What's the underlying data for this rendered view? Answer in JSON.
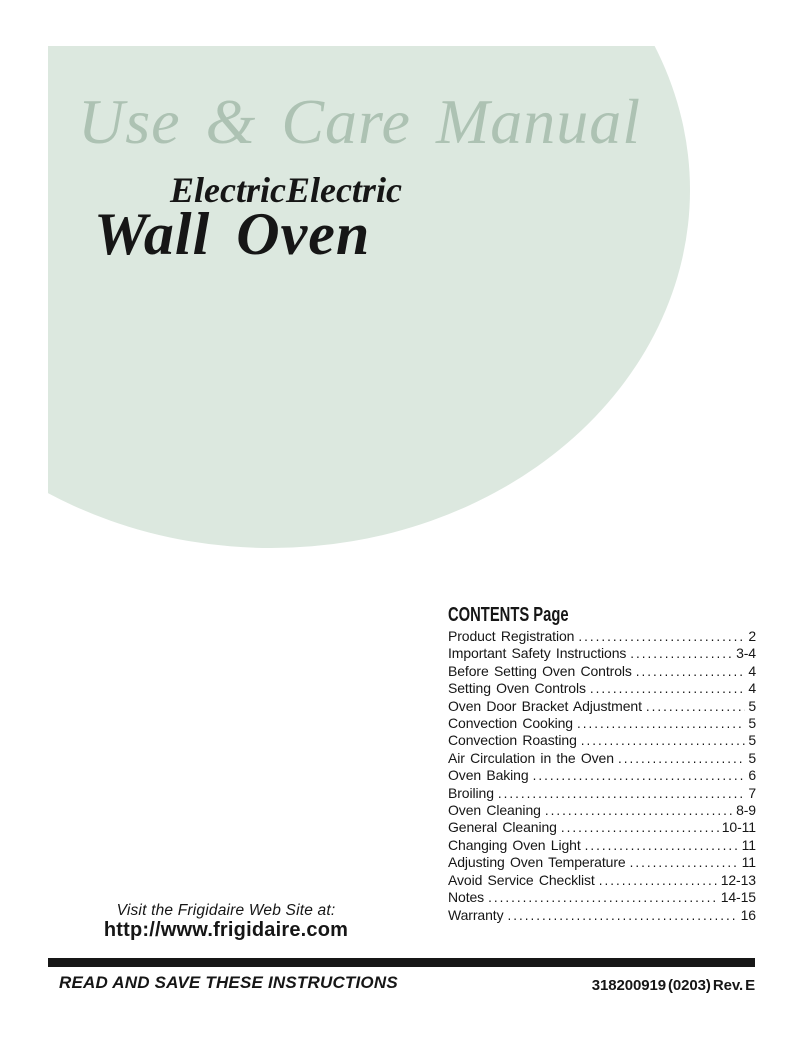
{
  "cover": {
    "script_title": "Use & Care Manual",
    "subtitle": "ElectricElectric",
    "product": "Wall Oven"
  },
  "contents": {
    "heading": "CONTENTS Page",
    "items": [
      {
        "label": "Product Registration",
        "page": "2"
      },
      {
        "label": "Important Safety Instructions",
        "page": "3-4"
      },
      {
        "label": "Before Setting Oven Controls",
        "page": "4"
      },
      {
        "label": "Setting Oven Controls",
        "page": "4"
      },
      {
        "label": "Oven Door Bracket Adjustment",
        "page": "5"
      },
      {
        "label": "Convection Cooking",
        "page": "5"
      },
      {
        "label": "Convection Roasting",
        "page": "5"
      },
      {
        "label": "Air Circulation in the Oven",
        "page": "5"
      },
      {
        "label": "Oven Baking",
        "page": "6"
      },
      {
        "label": "Broiling",
        "page": "7"
      },
      {
        "label": "Oven Cleaning",
        "page": "8-9"
      },
      {
        "label": "General Cleaning",
        "page": "10-11"
      },
      {
        "label": "Changing Oven Light",
        "page": "11"
      },
      {
        "label": "Adjusting Oven Temperature",
        "page": "11"
      },
      {
        "label": "Avoid Service Checklist",
        "page": "12-13"
      },
      {
        "label": "Notes",
        "page": "14-15"
      },
      {
        "label": "Warranty",
        "page": "16"
      }
    ]
  },
  "footer": {
    "visit_line": "Visit the Frigidaire Web Site at:",
    "url": "http://www.frigidaire.com",
    "read_save": "READ AND SAVE THESE INSTRUCTIONS",
    "part_number": "318200919 (0203) Rev. E"
  },
  "colors": {
    "sage_fill": "#dce8df",
    "sage_text": "#adc2b3",
    "ink": "#161616"
  }
}
